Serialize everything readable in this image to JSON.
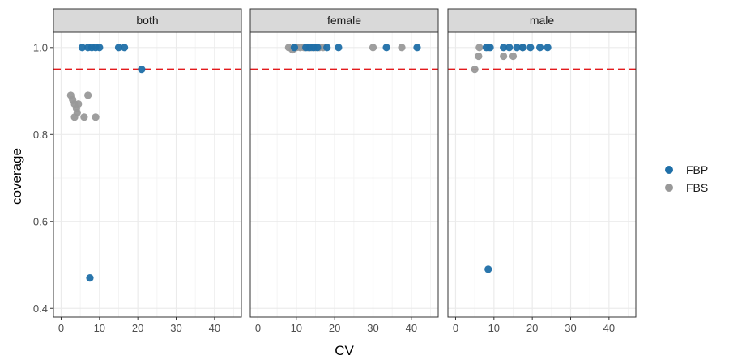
{
  "chart_data": {
    "type": "scatter",
    "xlabel": "CV",
    "ylabel": "coverage",
    "xlim": [
      -2,
      47
    ],
    "ylim": [
      0.38,
      1.035
    ],
    "x_ticks": [
      0,
      10,
      20,
      30,
      40
    ],
    "x_tick_labels": [
      "0",
      "10",
      "20",
      "30",
      "40"
    ],
    "y_ticks": [
      0.4,
      0.6,
      0.8,
      1.0
    ],
    "y_tick_labels": [
      "0.4",
      "0.6",
      "0.8",
      "1.0"
    ],
    "reference_line": {
      "y": 0.95,
      "color": "#e31a1c",
      "style": "dashed"
    },
    "legend": [
      {
        "name": "FBP",
        "color": "#1f6fa8"
      },
      {
        "name": "FBS",
        "color": "#999999"
      }
    ],
    "panels": [
      {
        "label": "both",
        "series": [
          {
            "name": "FBS",
            "points": [
              [
                2.5,
                0.89
              ],
              [
                3,
                0.88
              ],
              [
                3.5,
                0.87
              ],
              [
                4,
                0.86
              ],
              [
                4.2,
                0.85
              ],
              [
                3.5,
                0.84
              ],
              [
                4.5,
                0.87
              ],
              [
                6,
                0.84
              ],
              [
                7,
                0.89
              ],
              [
                9,
                0.84
              ]
            ]
          },
          {
            "name": "FBP",
            "points": [
              [
                5.5,
                1.0
              ],
              [
                7,
                1.0
              ],
              [
                8,
                1.0
              ],
              [
                9,
                1.0
              ],
              [
                10,
                1.0
              ],
              [
                15,
                1.0
              ],
              [
                16.5,
                1.0
              ],
              [
                21,
                0.95
              ],
              [
                7.5,
                0.47
              ]
            ]
          }
        ]
      },
      {
        "label": "female",
        "series": [
          {
            "name": "FBS",
            "points": [
              [
                8,
                1.0
              ],
              [
                9,
                0.995
              ],
              [
                10,
                1.0
              ],
              [
                11,
                1.0
              ],
              [
                12,
                1.0
              ],
              [
                13,
                1.0
              ],
              [
                14,
                1.0
              ],
              [
                15,
                1.0
              ],
              [
                16,
                1.0
              ],
              [
                17,
                1.0
              ],
              [
                30,
                1.0
              ],
              [
                37.5,
                1.0
              ]
            ]
          },
          {
            "name": "FBP",
            "points": [
              [
                9.5,
                1.0
              ],
              [
                12.5,
                1.0
              ],
              [
                13.5,
                1.0
              ],
              [
                14.5,
                1.0
              ],
              [
                15.5,
                1.0
              ],
              [
                18,
                1.0
              ],
              [
                21,
                1.0
              ],
              [
                33.5,
                1.0
              ],
              [
                41.5,
                1.0
              ]
            ]
          }
        ]
      },
      {
        "label": "male",
        "series": [
          {
            "name": "FBS",
            "points": [
              [
                5,
                0.95
              ],
              [
                6,
                0.98
              ],
              [
                6.2,
                1.0
              ],
              [
                8.5,
                1.0
              ],
              [
                12.5,
                0.98
              ],
              [
                15,
                0.98
              ],
              [
                17.5,
                1.0
              ]
            ]
          },
          {
            "name": "FBP",
            "points": [
              [
                8,
                1.0
              ],
              [
                9,
                1.0
              ],
              [
                12.5,
                1.0
              ],
              [
                14,
                1.0
              ],
              [
                16,
                1.0
              ],
              [
                17.5,
                1.0
              ],
              [
                19.5,
                1.0
              ],
              [
                22,
                1.0
              ],
              [
                24,
                1.0
              ],
              [
                8.5,
                0.49
              ]
            ]
          }
        ]
      }
    ]
  }
}
